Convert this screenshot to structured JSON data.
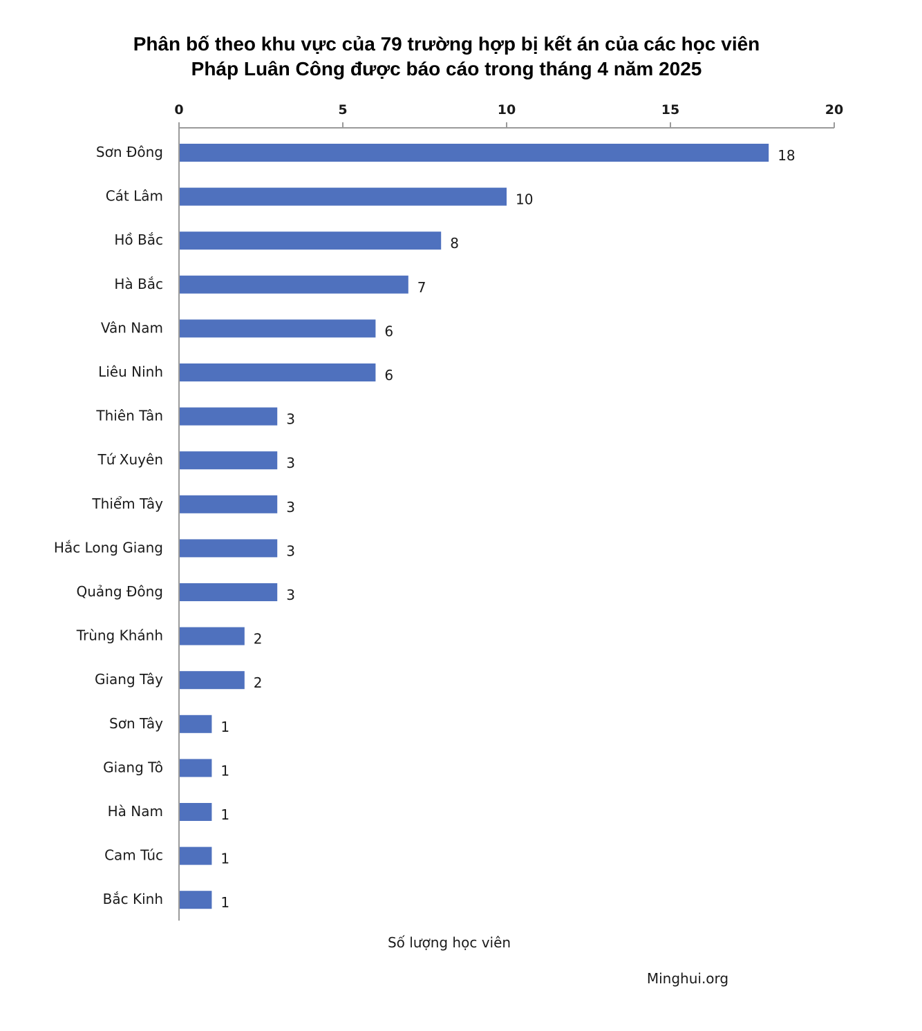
{
  "chart_data": {
    "type": "bar",
    "orientation": "horizontal",
    "title_lines": [
      "Phân bố theo khu vực của 79 trường hợp bị kết án của các học viên",
      "Pháp Luân Công được báo cáo trong tháng 4 năm 2025"
    ],
    "xlabel": "Số lượng học viên",
    "ylabel": "",
    "xlim": [
      0,
      20
    ],
    "x_ticks": [
      "0",
      "5",
      "10",
      "15",
      "20"
    ],
    "x_axis_position": "top",
    "grid": false,
    "legend": "none",
    "bar_color": "#4F71BE",
    "categories": [
      "Sơn Đông",
      "Cát Lâm",
      "Hồ Bắc",
      "Hà Bắc",
      "Vân Nam",
      "Liêu Ninh",
      "Thiên Tân",
      "Tứ Xuyên",
      "Thiểm Tây",
      "Hắc Long Giang",
      "Quảng Đông",
      "Trùng Khánh",
      "Giang Tây",
      "Sơn Tây",
      "Giang Tô",
      "Hà Nam",
      "Cam Túc",
      "Bắc Kinh"
    ],
    "values": [
      18,
      10,
      8,
      7,
      6,
      6,
      3,
      3,
      3,
      3,
      3,
      2,
      2,
      1,
      1,
      1,
      1,
      1
    ],
    "data_labels": [
      "18",
      "10",
      "8",
      "7",
      "6",
      "6",
      "3",
      "3",
      "3",
      "3",
      "3",
      "2",
      "2",
      "1",
      "1",
      "1",
      "1",
      "1"
    ]
  },
  "source": "Minghui.org"
}
